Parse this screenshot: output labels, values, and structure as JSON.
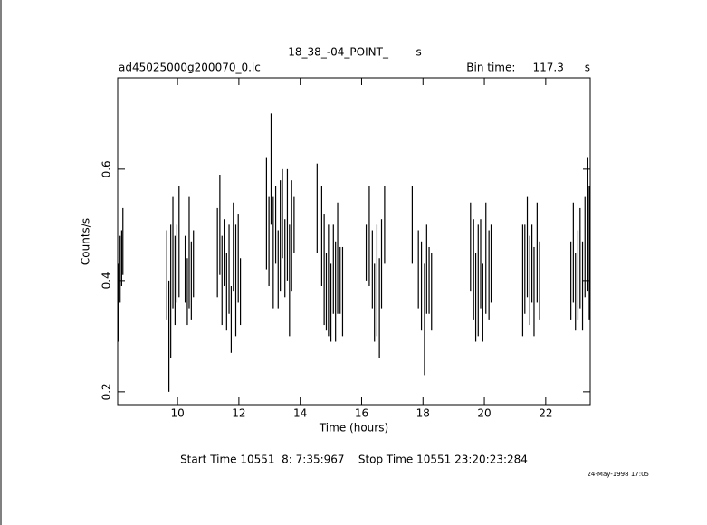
{
  "chart_data": {
    "type": "errorbar",
    "title": "18_38_-04_POINT_        s",
    "file_label": "ad45025000g200070_0.lc",
    "bin_label": "Bin time:     117.3      s",
    "x_label": "Time (hours)",
    "y_label": "Counts/s",
    "footer": "Start Time 10551  8: 7:35:967    Stop Time 10551 23:20:23:284",
    "date_stamp": "24-May-1998 17:05",
    "color": "#000000",
    "xlim": [
      8.05,
      23.45
    ],
    "ylim": [
      0.177,
      0.764
    ],
    "xticks": [
      10,
      12,
      14,
      16,
      18,
      20,
      22
    ],
    "yticks": [
      0.2,
      0.4,
      0.6
    ],
    "x": [
      8.08,
      8.13,
      8.18,
      8.22,
      9.65,
      9.72,
      9.78,
      9.85,
      9.92,
      9.98,
      10.05,
      10.25,
      10.32,
      10.38,
      10.45,
      10.52,
      11.3,
      11.38,
      11.45,
      11.52,
      11.6,
      11.68,
      11.75,
      11.82,
      11.9,
      11.98,
      12.05,
      12.9,
      12.98,
      13.05,
      13.12,
      13.2,
      13.28,
      13.35,
      13.42,
      13.5,
      13.58,
      13.65,
      13.72,
      13.8,
      14.55,
      14.7,
      14.78,
      14.85,
      14.92,
      15.0,
      15.08,
      15.15,
      15.22,
      15.3,
      15.38,
      16.15,
      16.25,
      16.35,
      16.42,
      16.5,
      16.58,
      16.65,
      16.75,
      17.65,
      17.85,
      17.95,
      18.05,
      18.12,
      18.2,
      18.28,
      19.55,
      19.65,
      19.72,
      19.8,
      19.88,
      19.95,
      20.05,
      20.15,
      20.22,
      21.25,
      21.32,
      21.4,
      21.48,
      21.55,
      21.62,
      21.72,
      21.8,
      22.82,
      22.9,
      22.97,
      23.05,
      23.12,
      23.2,
      23.28,
      23.35,
      23.42
    ],
    "values": [
      0.36,
      0.42,
      0.44,
      0.47,
      0.41,
      0.3,
      0.38,
      0.45,
      0.4,
      0.43,
      0.47,
      0.42,
      0.38,
      0.45,
      0.4,
      0.43,
      0.45,
      0.5,
      0.4,
      0.45,
      0.38,
      0.42,
      0.33,
      0.46,
      0.4,
      0.44,
      0.38,
      0.52,
      0.47,
      0.6,
      0.45,
      0.5,
      0.42,
      0.48,
      0.52,
      0.44,
      0.5,
      0.4,
      0.48,
      0.5,
      0.53,
      0.48,
      0.42,
      0.38,
      0.4,
      0.36,
      0.42,
      0.38,
      0.44,
      0.4,
      0.38,
      0.45,
      0.48,
      0.42,
      0.36,
      0.4,
      0.35,
      0.43,
      0.5,
      0.5,
      0.42,
      0.39,
      0.33,
      0.42,
      0.4,
      0.38,
      0.46,
      0.42,
      0.37,
      0.4,
      0.43,
      0.36,
      0.44,
      0.41,
      0.43,
      0.4,
      0.42,
      0.46,
      0.4,
      0.43,
      0.38,
      0.45,
      0.4,
      0.4,
      0.45,
      0.38,
      0.41,
      0.44,
      0.39,
      0.46,
      0.5,
      0.45
    ],
    "errors": [
      0.07,
      0.06,
      0.05,
      0.06,
      0.08,
      0.1,
      0.12,
      0.1,
      0.08,
      0.07,
      0.1,
      0.06,
      0.06,
      0.1,
      0.07,
      0.06,
      0.08,
      0.09,
      0.08,
      0.06,
      0.07,
      0.08,
      0.06,
      0.08,
      0.1,
      0.08,
      0.06,
      0.1,
      0.08,
      0.1,
      0.1,
      0.07,
      0.07,
      0.1,
      0.08,
      0.07,
      0.1,
      0.1,
      0.1,
      0.05,
      0.08,
      0.09,
      0.1,
      0.07,
      0.1,
      0.07,
      0.08,
      0.09,
      0.1,
      0.06,
      0.08,
      0.05,
      0.09,
      0.07,
      0.07,
      0.1,
      0.09,
      0.08,
      0.07,
      0.07,
      0.07,
      0.08,
      0.1,
      0.08,
      0.06,
      0.07,
      0.08,
      0.09,
      0.08,
      0.1,
      0.08,
      0.07,
      0.1,
      0.08,
      0.07,
      0.1,
      0.08,
      0.09,
      0.08,
      0.07,
      0.08,
      0.09,
      0.07,
      0.07,
      0.09,
      0.07,
      0.08,
      0.09,
      0.08,
      0.09,
      0.12,
      0.12
    ]
  }
}
